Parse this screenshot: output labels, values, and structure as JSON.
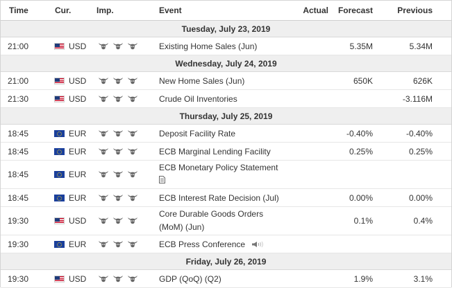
{
  "headers": {
    "time": "Time",
    "currency": "Cur.",
    "importance": "Imp.",
    "event": "Event",
    "actual": "Actual",
    "forecast": "Forecast",
    "previous": "Previous"
  },
  "days": [
    {
      "date": "Tuesday, July 23, 2019",
      "events": [
        {
          "time": "21:00",
          "currency": "USD",
          "flag": "us-flag-icon",
          "importance": 3,
          "event": "Existing Home Sales (Jun)",
          "event_line2": "",
          "actual": "",
          "forecast": "5.35M",
          "previous": "5.34M",
          "extra_icon": ""
        }
      ]
    },
    {
      "date": "Wednesday, July 24, 2019",
      "events": [
        {
          "time": "21:00",
          "currency": "USD",
          "flag": "us-flag-icon",
          "importance": 3,
          "event": "New Home Sales (Jun)",
          "event_line2": "",
          "actual": "",
          "forecast": "650K",
          "previous": "626K",
          "extra_icon": ""
        },
        {
          "time": "21:30",
          "currency": "USD",
          "flag": "us-flag-icon",
          "importance": 3,
          "event": "Crude Oil Inventories",
          "event_line2": "",
          "actual": "",
          "forecast": "",
          "previous": "-3.116M",
          "extra_icon": ""
        }
      ]
    },
    {
      "date": "Thursday, July 25, 2019",
      "events": [
        {
          "time": "18:45",
          "currency": "EUR",
          "flag": "eu-flag-icon",
          "importance": 3,
          "event": "Deposit Facility Rate",
          "event_line2": "",
          "actual": "",
          "forecast": "-0.40%",
          "previous": "-0.40%",
          "extra_icon": ""
        },
        {
          "time": "18:45",
          "currency": "EUR",
          "flag": "eu-flag-icon",
          "importance": 3,
          "event": "ECB Marginal Lending Facility",
          "event_line2": "",
          "actual": "",
          "forecast": "0.25%",
          "previous": "0.25%",
          "extra_icon": ""
        },
        {
          "time": "18:45",
          "currency": "EUR",
          "flag": "eu-flag-icon",
          "importance": 3,
          "event": "ECB Monetary Policy Statement",
          "event_line2": "",
          "actual": "",
          "forecast": "",
          "previous": "",
          "extra_icon": "document-icon"
        },
        {
          "time": "18:45",
          "currency": "EUR",
          "flag": "eu-flag-icon",
          "importance": 3,
          "event": "ECB Interest Rate Decision (Jul)",
          "event_line2": "",
          "actual": "",
          "forecast": "0.00%",
          "previous": "0.00%",
          "extra_icon": ""
        },
        {
          "time": "19:30",
          "currency": "USD",
          "flag": "us-flag-icon",
          "importance": 3,
          "event": "Core Durable Goods Orders",
          "event_line2": "(MoM) (Jun)",
          "actual": "",
          "forecast": "0.1%",
          "previous": "0.4%",
          "extra_icon": ""
        },
        {
          "time": "19:30",
          "currency": "EUR",
          "flag": "eu-flag-icon",
          "importance": 3,
          "event": "ECB Press Conference",
          "event_line2": "",
          "actual": "",
          "forecast": "",
          "previous": "",
          "extra_icon": "speaker-icon"
        }
      ]
    },
    {
      "date": "Friday, July 26, 2019",
      "events": [
        {
          "time": "19:30",
          "currency": "USD",
          "flag": "us-flag-icon",
          "importance": 3,
          "event": "GDP (QoQ) (Q2)",
          "event_line2": "",
          "actual": "",
          "forecast": "1.9%",
          "previous": "3.1%",
          "extra_icon": ""
        }
      ]
    }
  ],
  "colors": {
    "date_row_bg": "#efefef",
    "border": "#e6e6e6",
    "bull_icon": "#666666"
  }
}
